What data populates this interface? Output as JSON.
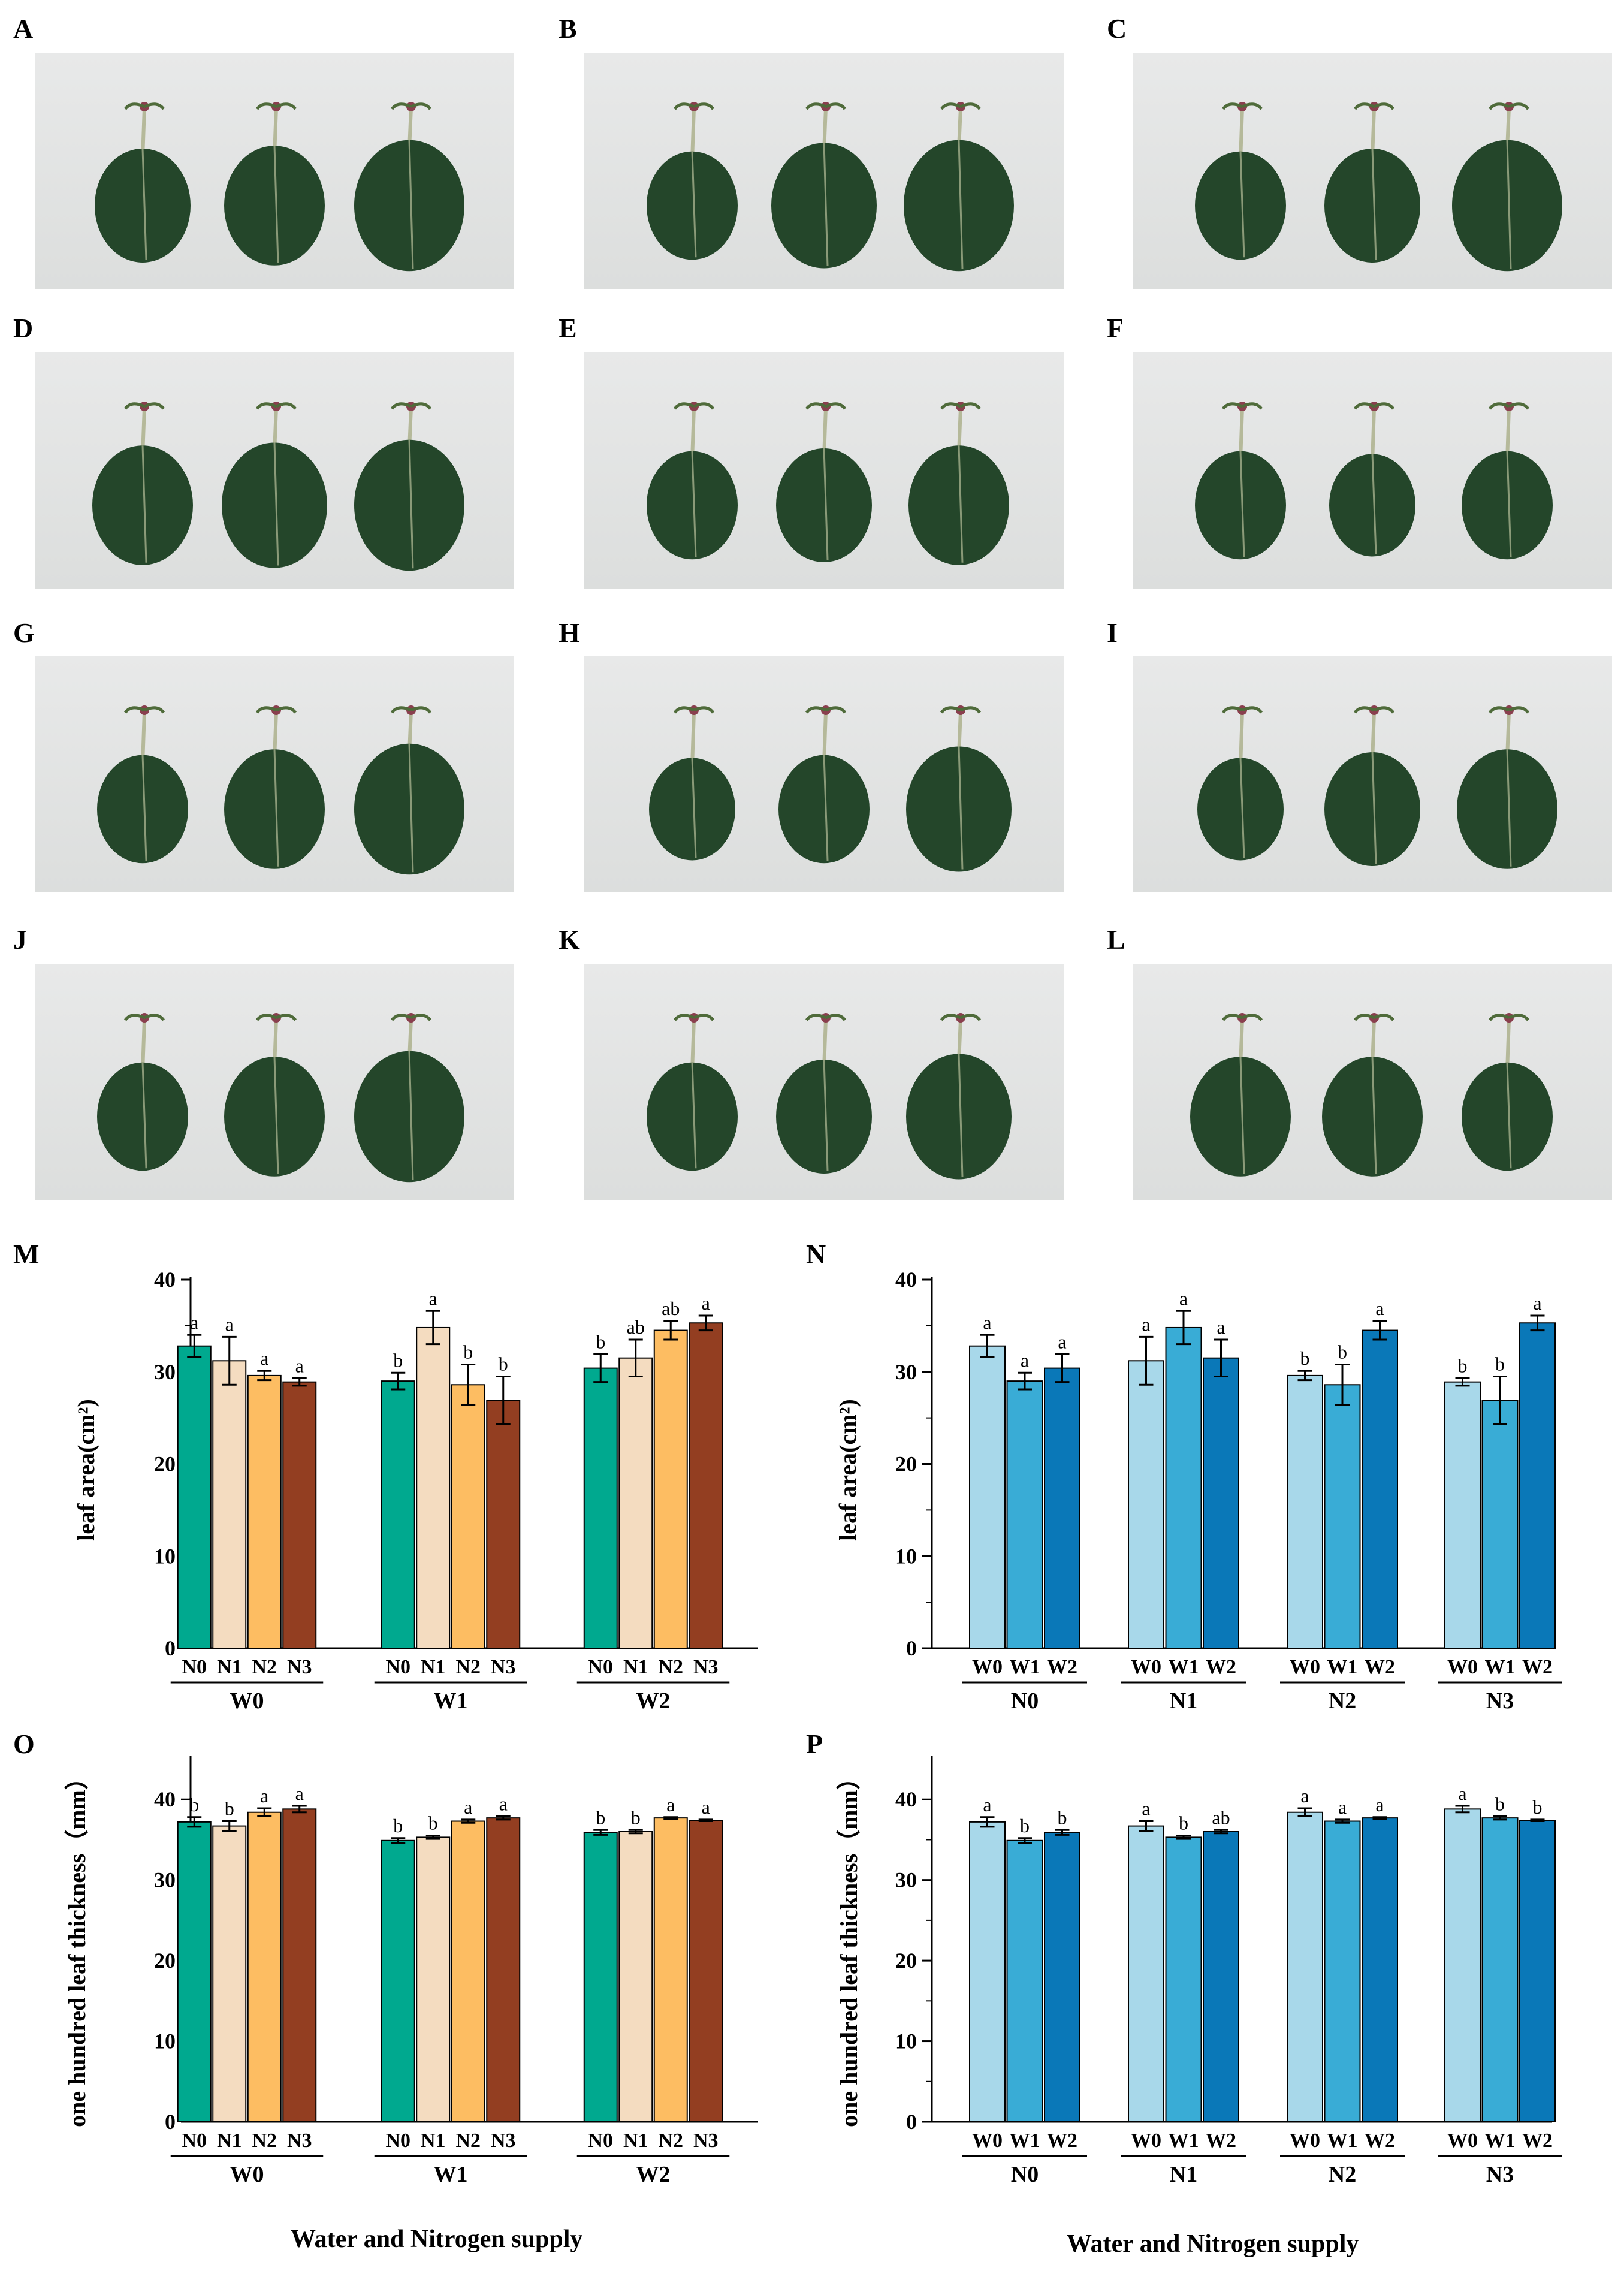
{
  "photo_panels": [
    {
      "id": "A",
      "leaf_scale": [
        1.0,
        1.05,
        1.15
      ]
    },
    {
      "id": "B",
      "leaf_scale": [
        0.95,
        1.1,
        1.15
      ]
    },
    {
      "id": "C",
      "leaf_scale": [
        0.95,
        1.0,
        1.15
      ]
    },
    {
      "id": "D",
      "leaf_scale": [
        1.05,
        1.1,
        1.15
      ]
    },
    {
      "id": "E",
      "leaf_scale": [
        0.95,
        1.0,
        1.05
      ]
    },
    {
      "id": "F",
      "leaf_scale": [
        0.95,
        0.9,
        0.95
      ]
    },
    {
      "id": "G",
      "leaf_scale": [
        0.95,
        1.05,
        1.15
      ]
    },
    {
      "id": "H",
      "leaf_scale": [
        0.9,
        0.95,
        1.1
      ]
    },
    {
      "id": "I",
      "leaf_scale": [
        0.9,
        1.0,
        1.05
      ]
    },
    {
      "id": "J",
      "leaf_scale": [
        0.95,
        1.05,
        1.15
      ]
    },
    {
      "id": "K",
      "leaf_scale": [
        0.95,
        1.0,
        1.1
      ]
    },
    {
      "id": "L",
      "leaf_scale": [
        1.05,
        1.05,
        0.95
      ]
    }
  ],
  "colors": {
    "N0": "#00a98f",
    "N1": "#f4dcc0",
    "N2": "#fdbd62",
    "N3": "#933e21",
    "W0": "#a8d8ea",
    "W1": "#39acd6",
    "W2": "#0a78b8",
    "photo_bg": "#e2e4e3",
    "leaf": "#24462a"
  },
  "x_axis_title": "Water and Nitrogen supply",
  "chart_data": [
    {
      "panel": "M",
      "type": "bar",
      "ylabel": "leaf area(cm²)",
      "ylim": [
        0,
        40
      ],
      "yticks": [
        0,
        10,
        20,
        30,
        40
      ],
      "series_names": [
        "N0",
        "N1",
        "N2",
        "N3"
      ],
      "groups": [
        {
          "label": "W0",
          "values": [
            32.8,
            31.2,
            29.6,
            28.9
          ],
          "errors": [
            1.2,
            2.6,
            0.5,
            0.4
          ],
          "letters": [
            "a",
            "a",
            "a",
            "a"
          ]
        },
        {
          "label": "W1",
          "values": [
            29.0,
            34.8,
            28.6,
            26.9
          ],
          "errors": [
            0.9,
            1.8,
            2.2,
            2.6
          ],
          "letters": [
            "b",
            "a",
            "b",
            "b"
          ]
        },
        {
          "label": "W2",
          "values": [
            30.4,
            31.5,
            34.5,
            35.3
          ],
          "errors": [
            1.5,
            2.0,
            1.0,
            0.8
          ],
          "letters": [
            "b",
            "ab",
            "ab",
            "a"
          ]
        }
      ]
    },
    {
      "panel": "N",
      "type": "bar",
      "ylabel": "leaf area(cm²)",
      "ylim": [
        0,
        40
      ],
      "yticks": [
        0,
        10,
        20,
        30,
        40
      ],
      "series_names": [
        "W0",
        "W1",
        "W2"
      ],
      "groups": [
        {
          "label": "N0",
          "values": [
            32.8,
            29.0,
            30.4
          ],
          "errors": [
            1.2,
            0.9,
            1.5
          ],
          "letters": [
            "a",
            "a",
            "a"
          ]
        },
        {
          "label": "N1",
          "values": [
            31.2,
            34.8,
            31.5
          ],
          "errors": [
            2.6,
            1.8,
            2.0
          ],
          "letters": [
            "a",
            "a",
            "a"
          ]
        },
        {
          "label": "N2",
          "values": [
            29.6,
            28.6,
            34.5
          ],
          "errors": [
            0.5,
            2.2,
            1.0
          ],
          "letters": [
            "b",
            "b",
            "a"
          ]
        },
        {
          "label": "N3",
          "values": [
            28.9,
            26.9,
            35.3
          ],
          "errors": [
            0.4,
            2.6,
            0.8
          ],
          "letters": [
            "b",
            "b",
            "a"
          ]
        }
      ]
    },
    {
      "panel": "O",
      "type": "bar",
      "ylabel": "one hundred leaf thickness（mm）",
      "ylim": [
        0,
        45
      ],
      "yticks": [
        0,
        10,
        20,
        30,
        40
      ],
      "series_names": [
        "N0",
        "N1",
        "N2",
        "N3"
      ],
      "groups": [
        {
          "label": "W0",
          "values": [
            37.2,
            36.7,
            38.4,
            38.8
          ],
          "errors": [
            0.6,
            0.6,
            0.5,
            0.4
          ],
          "letters": [
            "b",
            "b",
            "a",
            "a"
          ]
        },
        {
          "label": "W1",
          "values": [
            34.9,
            35.3,
            37.3,
            37.7
          ],
          "errors": [
            0.3,
            0.2,
            0.2,
            0.2
          ],
          "letters": [
            "b",
            "b",
            "a",
            "a"
          ]
        },
        {
          "label": "W2",
          "values": [
            35.9,
            36.0,
            37.7,
            37.4
          ],
          "errors": [
            0.3,
            0.2,
            0.1,
            0.1
          ],
          "letters": [
            "b",
            "b",
            "a",
            "a"
          ]
        }
      ]
    },
    {
      "panel": "P",
      "type": "bar",
      "ylabel": "one hundred leaf thickness（mm）",
      "ylim": [
        0,
        45
      ],
      "yticks": [
        0,
        10,
        20,
        30,
        40
      ],
      "series_names": [
        "W0",
        "W1",
        "W2"
      ],
      "groups": [
        {
          "label": "N0",
          "values": [
            37.2,
            34.9,
            35.9
          ],
          "errors": [
            0.6,
            0.3,
            0.3
          ],
          "letters": [
            "a",
            "b",
            "b"
          ]
        },
        {
          "label": "N1",
          "values": [
            36.7,
            35.3,
            36.0
          ],
          "errors": [
            0.6,
            0.2,
            0.2
          ],
          "letters": [
            "a",
            "b",
            "ab"
          ]
        },
        {
          "label": "N2",
          "values": [
            38.4,
            37.3,
            37.7
          ],
          "errors": [
            0.5,
            0.2,
            0.1
          ],
          "letters": [
            "a",
            "a",
            "a"
          ]
        },
        {
          "label": "N3",
          "values": [
            38.8,
            37.7,
            37.4
          ],
          "errors": [
            0.4,
            0.2,
            0.1
          ],
          "letters": [
            "a",
            "b",
            "b"
          ]
        }
      ]
    }
  ]
}
